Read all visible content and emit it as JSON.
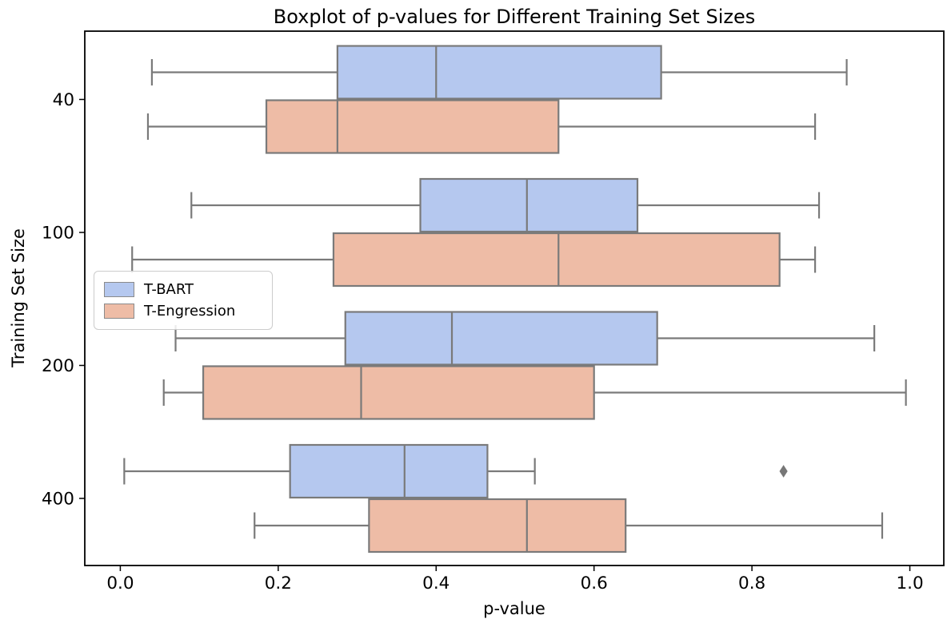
{
  "chart_data": {
    "type": "boxplot",
    "orientation": "horizontal",
    "title": "Boxplot of p-values for Different Training Set Sizes",
    "xlabel": "p-value",
    "ylabel": "Training Set Size",
    "grid": false,
    "legend_position": "center left",
    "xlim": [
      -0.045,
      1.043
    ],
    "x_ticks": [
      {
        "value": 0.0,
        "label": "0.0"
      },
      {
        "value": 0.2,
        "label": "0.2"
      },
      {
        "value": 0.4,
        "label": "0.4"
      },
      {
        "value": 0.6,
        "label": "0.6"
      },
      {
        "value": 0.8,
        "label": "0.8"
      },
      {
        "value": 1.0,
        "label": "1.0"
      }
    ],
    "categories": [
      "40",
      "100",
      "200",
      "400"
    ],
    "series": [
      {
        "name": "T-BART",
        "color": "#b5c8ef",
        "boxes": [
          {
            "category": "40",
            "whisker_low": 0.04,
            "q1": 0.275,
            "median": 0.4,
            "q3": 0.685,
            "whisker_high": 0.92,
            "outliers": []
          },
          {
            "category": "100",
            "whisker_low": 0.09,
            "q1": 0.38,
            "median": 0.515,
            "q3": 0.655,
            "whisker_high": 0.885,
            "outliers": []
          },
          {
            "category": "200",
            "whisker_low": 0.07,
            "q1": 0.285,
            "median": 0.42,
            "q3": 0.68,
            "whisker_high": 0.955,
            "outliers": []
          },
          {
            "category": "400",
            "whisker_low": 0.005,
            "q1": 0.215,
            "median": 0.36,
            "q3": 0.465,
            "whisker_high": 0.525,
            "outliers": [
              0.84
            ]
          }
        ]
      },
      {
        "name": "T-Engression",
        "color": "#eebca6",
        "boxes": [
          {
            "category": "40",
            "whisker_low": 0.035,
            "q1": 0.185,
            "median": 0.275,
            "q3": 0.555,
            "whisker_high": 0.88,
            "outliers": []
          },
          {
            "category": "100",
            "whisker_low": 0.015,
            "q1": 0.27,
            "median": 0.555,
            "q3": 0.835,
            "whisker_high": 0.88,
            "outliers": []
          },
          {
            "category": "200",
            "whisker_low": 0.055,
            "q1": 0.105,
            "median": 0.305,
            "q3": 0.6,
            "whisker_high": 0.995,
            "outliers": []
          },
          {
            "category": "400",
            "whisker_low": 0.17,
            "q1": 0.315,
            "median": 0.515,
            "q3": 0.64,
            "whisker_high": 0.965,
            "outliers": []
          }
        ]
      }
    ],
    "colors": {
      "box_edge": "#7a7a7a",
      "whisker": "#7a7a7a",
      "median": "#7a7a7a",
      "outlier": "#777777",
      "frame": "#000000",
      "text": "#000000",
      "background": "#ffffff"
    }
  }
}
